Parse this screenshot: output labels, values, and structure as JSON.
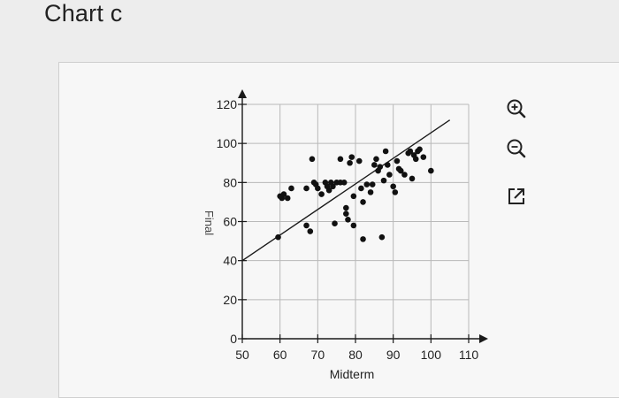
{
  "page": {
    "heading": "Chart c"
  },
  "tools": [
    {
      "name": "zoom-in-icon"
    },
    {
      "name": "zoom-out-icon"
    },
    {
      "name": "expand-icon"
    }
  ],
  "colors": {
    "axis": "#1a1a1a",
    "grid": "#b9b9b9",
    "point": "#111111",
    "line": "#1a1a1a"
  },
  "chart_data": {
    "type": "scatter",
    "title": "",
    "xlabel": "Midterm",
    "ylabel": "Final",
    "xlim": [
      50,
      110
    ],
    "ylim": [
      0,
      120
    ],
    "x_ticks": [
      50,
      60,
      70,
      80,
      90,
      100,
      110
    ],
    "y_ticks": [
      0,
      20,
      40,
      60,
      80,
      100,
      120
    ],
    "x_tick_labels": [
      "50",
      "60",
      "70",
      "80",
      "90",
      "100",
      "110"
    ],
    "y_tick_labels": [
      "0",
      "20",
      "40",
      "60",
      "80",
      "100",
      "120"
    ],
    "grid": true,
    "trend_line": {
      "x": [
        50,
        105
      ],
      "y": [
        40,
        112
      ]
    },
    "points": [
      [
        59.5,
        52
      ],
      [
        60,
        73
      ],
      [
        60.5,
        72
      ],
      [
        61,
        74
      ],
      [
        62,
        72
      ],
      [
        63,
        77
      ],
      [
        67,
        77
      ],
      [
        67,
        58
      ],
      [
        68,
        55
      ],
      [
        68.5,
        92
      ],
      [
        69,
        80
      ],
      [
        69.5,
        79
      ],
      [
        70,
        77
      ],
      [
        71,
        74
      ],
      [
        72,
        80
      ],
      [
        72.5,
        78
      ],
      [
        73,
        76
      ],
      [
        73.5,
        80
      ],
      [
        74,
        78
      ],
      [
        74.5,
        59
      ],
      [
        75,
        80
      ],
      [
        76,
        80
      ],
      [
        76,
        92
      ],
      [
        77,
        80
      ],
      [
        77.5,
        64
      ],
      [
        77.5,
        67
      ],
      [
        78,
        61
      ],
      [
        78.5,
        90
      ],
      [
        79,
        93
      ],
      [
        79.5,
        58
      ],
      [
        79.5,
        73
      ],
      [
        81,
        91
      ],
      [
        81.5,
        77
      ],
      [
        82,
        70
      ],
      [
        82,
        51
      ],
      [
        83,
        79
      ],
      [
        84,
        75
      ],
      [
        84.5,
        79
      ],
      [
        85,
        89
      ],
      [
        85.5,
        92
      ],
      [
        86,
        86
      ],
      [
        86.5,
        88
      ],
      [
        87,
        52
      ],
      [
        87.5,
        81
      ],
      [
        88,
        96
      ],
      [
        88.5,
        89
      ],
      [
        89,
        84
      ],
      [
        90,
        78
      ],
      [
        90.5,
        75
      ],
      [
        91,
        91
      ],
      [
        91.5,
        87
      ],
      [
        92,
        86
      ],
      [
        93,
        84
      ],
      [
        94,
        95
      ],
      [
        94.5,
        96
      ],
      [
        95,
        82
      ],
      [
        95.5,
        94
      ],
      [
        96,
        92
      ],
      [
        96.5,
        96
      ],
      [
        97,
        97
      ],
      [
        98,
        93
      ],
      [
        100,
        86
      ]
    ]
  }
}
